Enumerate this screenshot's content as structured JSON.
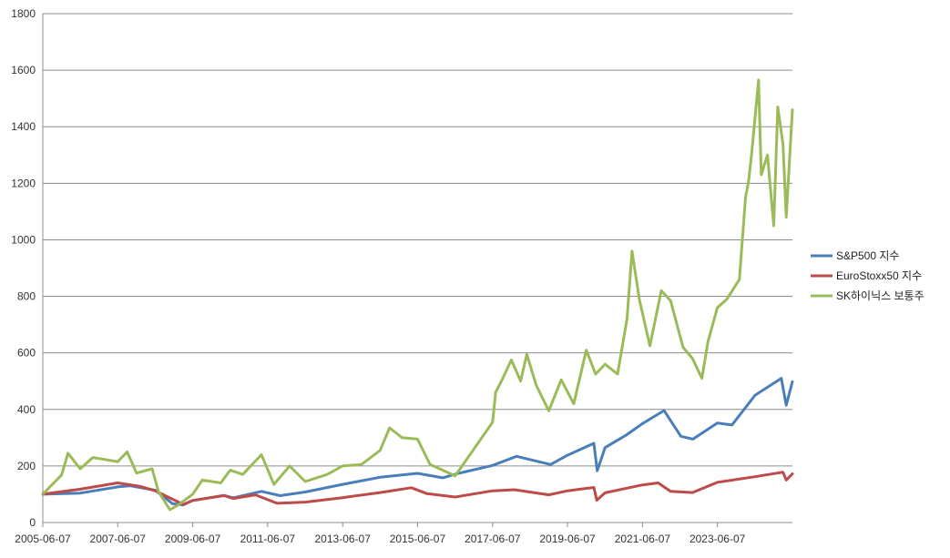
{
  "chart_data": {
    "type": "line",
    "title": "",
    "xlabel": "",
    "ylabel": "",
    "ylim": [
      0,
      1800
    ],
    "y_ticks": [
      0,
      200,
      400,
      600,
      800,
      1000,
      1200,
      1400,
      1600,
      1800
    ],
    "x_ticks": [
      "2005-06-07",
      "2007-06-07",
      "2009-06-07",
      "2011-06-07",
      "2013-06-07",
      "2015-06-07",
      "2017-06-07",
      "2019-06-07",
      "2021-06-07",
      "2023-06-07"
    ],
    "xlim": [
      "2005-06-07",
      "2025-06-07"
    ],
    "grid": "horizontal",
    "legend_position": "right",
    "series": [
      {
        "name": "S&P500 지수",
        "color": "#4a7ebb",
        "points": [
          [
            "2005-06-07",
            100
          ],
          [
            "2006-06-07",
            104
          ],
          [
            "2007-06-07",
            126
          ],
          [
            "2007-10-07",
            130
          ],
          [
            "2008-06-07",
            114
          ],
          [
            "2008-11-20",
            67
          ],
          [
            "2009-03-07",
            62
          ],
          [
            "2009-06-07",
            78
          ],
          [
            "2010-04-07",
            96
          ],
          [
            "2010-07-07",
            87
          ],
          [
            "2011-04-07",
            110
          ],
          [
            "2011-10-07",
            95
          ],
          [
            "2012-06-07",
            108
          ],
          [
            "2013-06-07",
            135
          ],
          [
            "2014-06-07",
            160
          ],
          [
            "2015-06-07",
            174
          ],
          [
            "2016-02-07",
            158
          ],
          [
            "2016-06-07",
            171
          ],
          [
            "2017-06-07",
            202
          ],
          [
            "2018-01-26",
            234
          ],
          [
            "2018-12-24",
            205
          ],
          [
            "2019-06-07",
            238
          ],
          [
            "2020-02-19",
            280
          ],
          [
            "2020-03-23",
            183
          ],
          [
            "2020-06-07",
            265
          ],
          [
            "2021-01-07",
            311
          ],
          [
            "2021-06-07",
            350
          ],
          [
            "2022-01-03",
            396
          ],
          [
            "2022-06-16",
            305
          ],
          [
            "2022-10-12",
            295
          ],
          [
            "2023-06-07",
            352
          ],
          [
            "2023-10-27",
            345
          ],
          [
            "2024-06-07",
            450
          ],
          [
            "2025-02-19",
            510
          ],
          [
            "2025-04-08",
            415
          ],
          [
            "2025-06-07",
            498
          ]
        ]
      },
      {
        "name": "EuroStoxx50 지수",
        "color": "#be4b48",
        "points": [
          [
            "2005-06-07",
            100
          ],
          [
            "2006-06-07",
            118
          ],
          [
            "2007-06-07",
            140
          ],
          [
            "2008-01-07",
            128
          ],
          [
            "2008-06-07",
            112
          ],
          [
            "2009-03-07",
            64
          ],
          [
            "2009-06-07",
            78
          ],
          [
            "2010-04-07",
            95
          ],
          [
            "2010-07-07",
            85
          ],
          [
            "2011-02-07",
            98
          ],
          [
            "2011-09-07",
            68
          ],
          [
            "2012-06-07",
            72
          ],
          [
            "2013-06-07",
            88
          ],
          [
            "2014-06-07",
            106
          ],
          [
            "2015-04-07",
            123
          ],
          [
            "2015-09-07",
            102
          ],
          [
            "2016-06-07",
            90
          ],
          [
            "2017-06-07",
            112
          ],
          [
            "2018-01-07",
            116
          ],
          [
            "2018-12-07",
            98
          ],
          [
            "2019-06-07",
            112
          ],
          [
            "2020-02-19",
            124
          ],
          [
            "2020-03-18",
            79
          ],
          [
            "2020-06-07",
            105
          ],
          [
            "2021-06-07",
            133
          ],
          [
            "2021-11-07",
            140
          ],
          [
            "2022-03-07",
            110
          ],
          [
            "2022-10-07",
            106
          ],
          [
            "2023-06-07",
            142
          ],
          [
            "2024-06-07",
            162
          ],
          [
            "2025-03-07",
            178
          ],
          [
            "2025-04-08",
            150
          ],
          [
            "2025-06-07",
            172
          ]
        ]
      },
      {
        "name": "SK하이닉스 보통주",
        "color": "#9bbb59",
        "points": [
          [
            "2005-06-07",
            100
          ],
          [
            "2005-12-07",
            168
          ],
          [
            "2006-02-07",
            245
          ],
          [
            "2006-06-07",
            190
          ],
          [
            "2006-10-07",
            230
          ],
          [
            "2007-06-07",
            215
          ],
          [
            "2007-09-07",
            250
          ],
          [
            "2007-12-07",
            175
          ],
          [
            "2008-05-07",
            190
          ],
          [
            "2008-07-07",
            110
          ],
          [
            "2008-10-27",
            45
          ],
          [
            "2009-01-07",
            60
          ],
          [
            "2009-06-07",
            100
          ],
          [
            "2009-09-07",
            150
          ],
          [
            "2010-03-07",
            140
          ],
          [
            "2010-06-07",
            185
          ],
          [
            "2010-10-07",
            170
          ],
          [
            "2011-04-07",
            240
          ],
          [
            "2011-08-07",
            135
          ],
          [
            "2012-01-07",
            200
          ],
          [
            "2012-06-07",
            145
          ],
          [
            "2013-01-07",
            170
          ],
          [
            "2013-06-07",
            200
          ],
          [
            "2013-12-07",
            205
          ],
          [
            "2014-06-07",
            255
          ],
          [
            "2014-09-07",
            335
          ],
          [
            "2015-01-07",
            300
          ],
          [
            "2015-06-07",
            295
          ],
          [
            "2015-10-07",
            205
          ],
          [
            "2016-06-07",
            165
          ],
          [
            "2016-12-07",
            260
          ],
          [
            "2017-06-07",
            355
          ],
          [
            "2017-07-07",
            460
          ],
          [
            "2017-09-07",
            505
          ],
          [
            "2017-12-07",
            575
          ],
          [
            "2018-03-07",
            500
          ],
          [
            "2018-05-07",
            595
          ],
          [
            "2018-08-07",
            485
          ],
          [
            "2018-12-07",
            395
          ],
          [
            "2019-04-07",
            505
          ],
          [
            "2019-08-07",
            420
          ],
          [
            "2019-12-07",
            610
          ],
          [
            "2020-03-07",
            525
          ],
          [
            "2020-06-07",
            560
          ],
          [
            "2020-10-07",
            525
          ],
          [
            "2021-01-07",
            720
          ],
          [
            "2021-02-25",
            960
          ],
          [
            "2021-05-07",
            790
          ],
          [
            "2021-08-18",
            625
          ],
          [
            "2021-12-07",
            820
          ],
          [
            "2022-03-07",
            785
          ],
          [
            "2022-07-07",
            620
          ],
          [
            "2022-10-07",
            580
          ],
          [
            "2023-01-07",
            510
          ],
          [
            "2023-03-07",
            640
          ],
          [
            "2023-06-07",
            760
          ],
          [
            "2023-09-07",
            790
          ],
          [
            "2024-01-07",
            860
          ],
          [
            "2024-03-07",
            1150
          ],
          [
            "2024-04-07",
            1210
          ],
          [
            "2024-05-07",
            1310
          ],
          [
            "2024-07-12",
            1565
          ],
          [
            "2024-08-07",
            1230
          ],
          [
            "2024-10-07",
            1300
          ],
          [
            "2024-12-07",
            1050
          ],
          [
            "2025-01-15",
            1470
          ],
          [
            "2025-03-07",
            1340
          ],
          [
            "2025-04-08",
            1080
          ],
          [
            "2025-06-07",
            1460
          ]
        ]
      }
    ]
  }
}
